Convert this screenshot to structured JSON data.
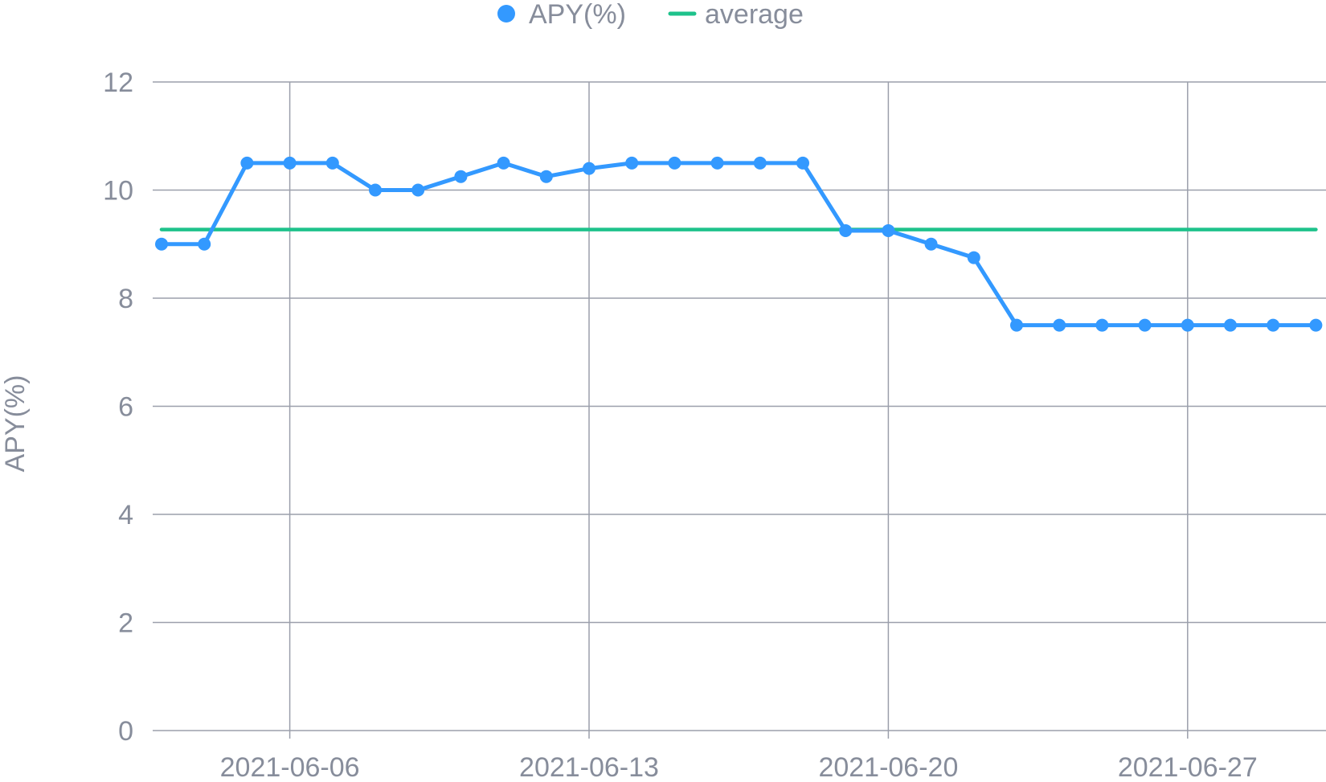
{
  "chart_data": {
    "type": "line",
    "title": "",
    "xlabel": "",
    "ylabel": "APY(%)",
    "x": [
      "2021-06-03",
      "2021-06-04",
      "2021-06-05",
      "2021-06-06",
      "2021-06-07",
      "2021-06-08",
      "2021-06-09",
      "2021-06-10",
      "2021-06-11",
      "2021-06-12",
      "2021-06-13",
      "2021-06-14",
      "2021-06-15",
      "2021-06-16",
      "2021-06-17",
      "2021-06-18",
      "2021-06-19",
      "2021-06-20",
      "2021-06-21",
      "2021-06-22",
      "2021-06-23",
      "2021-06-24",
      "2021-06-25",
      "2021-06-26",
      "2021-06-27",
      "2021-06-28",
      "2021-06-29",
      "2021-06-30"
    ],
    "x_ticks": [
      "2021-06-06",
      "2021-06-13",
      "2021-06-20",
      "2021-06-27"
    ],
    "ylim": [
      0,
      12
    ],
    "y_ticks": [
      "0",
      "2",
      "4",
      "6",
      "8",
      "10",
      "12"
    ],
    "grid": true,
    "legend_position": "top-center",
    "series": [
      {
        "name": "APY(%)",
        "color": "#3399ff",
        "marker": "circle",
        "values": [
          9,
          9,
          10.5,
          10.5,
          10.5,
          10,
          10,
          10.25,
          10.5,
          10.25,
          10.4,
          10.5,
          10.5,
          10.5,
          10.5,
          10.5,
          9.25,
          9.25,
          9,
          8.75,
          7.5,
          7.5,
          7.5,
          7.5,
          7.5,
          7.5,
          7.5,
          7.5
        ]
      },
      {
        "name": "average",
        "color": "#1ec28b",
        "marker": "none",
        "values": [
          9.27,
          9.27,
          9.27,
          9.27,
          9.27,
          9.27,
          9.27,
          9.27,
          9.27,
          9.27,
          9.27,
          9.27,
          9.27,
          9.27,
          9.27,
          9.27,
          9.27,
          9.27,
          9.27,
          9.27,
          9.27,
          9.27,
          9.27,
          9.27,
          9.27,
          9.27,
          9.27,
          9.27
        ]
      }
    ],
    "colors": {
      "grid": "#9b9fab",
      "axis_text": "#878d9b",
      "apy": "#3399ff",
      "average": "#1ec28b"
    }
  }
}
